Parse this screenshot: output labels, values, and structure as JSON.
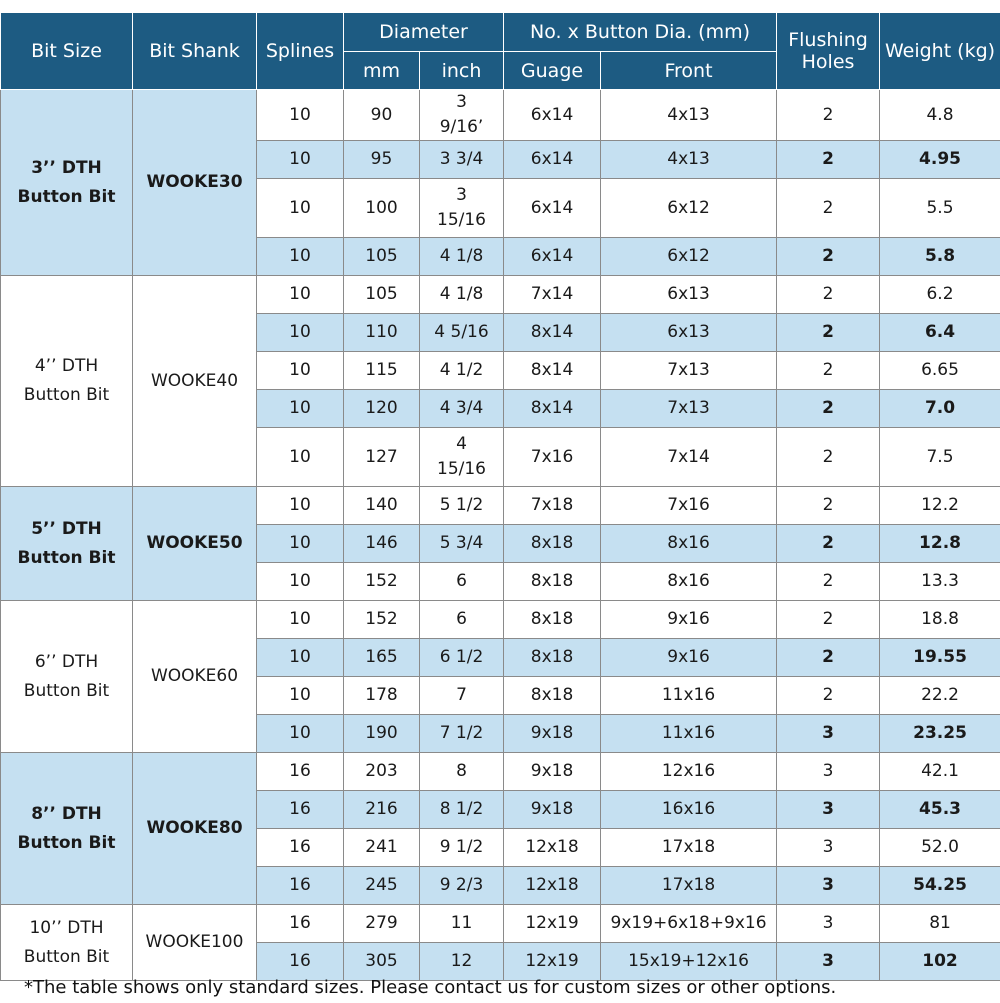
{
  "header": {
    "bit_size": "Bit Size",
    "bit_shank": "Bit Shank",
    "splines": "Splines",
    "diameter": "Diameter",
    "mm": "mm",
    "inch": "inch",
    "button": "No. x Button Dia. (mm)",
    "gauge": "Guage",
    "front": "Front",
    "flushing": "Flushing Holes",
    "weight": "Weight (kg)"
  },
  "groups": [
    {
      "size": "3’’ DTH Button Bit",
      "shank": "WOOKE30",
      "rows": [
        {
          "splines": "10",
          "mm": "90",
          "inch": "3 9/16’",
          "gauge": "6x14",
          "front": "4x13",
          "holes": "2",
          "weight": "4.8"
        },
        {
          "splines": "10",
          "mm": "95",
          "inch": "3 3/4",
          "gauge": "6x14",
          "front": "4x13",
          "holes": "2",
          "weight": "4.95"
        },
        {
          "splines": "10",
          "mm": "100",
          "inch": "3 15/16",
          "gauge": "6x14",
          "front": "6x12",
          "holes": "2",
          "weight": "5.5"
        },
        {
          "splines": "10",
          "mm": "105",
          "inch": "4 1/8",
          "gauge": "6x14",
          "front": "6x12",
          "holes": "2",
          "weight": "5.8"
        }
      ]
    },
    {
      "size": "4’’ DTH Button Bit",
      "shank": "WOOKE40",
      "rows": [
        {
          "splines": "10",
          "mm": "105",
          "inch": "4 1/8",
          "gauge": "7x14",
          "front": "6x13",
          "holes": "2",
          "weight": "6.2"
        },
        {
          "splines": "10",
          "mm": "110",
          "inch": "4 5/16",
          "gauge": "8x14",
          "front": "6x13",
          "holes": "2",
          "weight": "6.4"
        },
        {
          "splines": "10",
          "mm": "115",
          "inch": "4 1/2",
          "gauge": "8x14",
          "front": "7x13",
          "holes": "2",
          "weight": "6.65"
        },
        {
          "splines": "10",
          "mm": "120",
          "inch": "4 3/4",
          "gauge": "8x14",
          "front": "7x13",
          "holes": "2",
          "weight": "7.0"
        },
        {
          "splines": "10",
          "mm": "127",
          "inch": "4 15/16",
          "gauge": "7x16",
          "front": "7x14",
          "holes": "2",
          "weight": "7.5"
        }
      ]
    },
    {
      "size": "5’’ DTH Button Bit",
      "shank": "WOOKE50",
      "rows": [
        {
          "splines": "10",
          "mm": "140",
          "inch": "5 1/2",
          "gauge": "7x18",
          "front": "7x16",
          "holes": "2",
          "weight": "12.2"
        },
        {
          "splines": "10",
          "mm": "146",
          "inch": "5 3/4",
          "gauge": "8x18",
          "front": "8x16",
          "holes": "2",
          "weight": "12.8"
        },
        {
          "splines": "10",
          "mm": "152",
          "inch": "6",
          "gauge": "8x18",
          "front": "8x16",
          "holes": "2",
          "weight": "13.3"
        }
      ]
    },
    {
      "size": "6’’ DTH Button Bit",
      "shank": "WOOKE60",
      "rows": [
        {
          "splines": "10",
          "mm": "152",
          "inch": "6",
          "gauge": "8x18",
          "front": "9x16",
          "holes": "2",
          "weight": "18.8"
        },
        {
          "splines": "10",
          "mm": "165",
          "inch": "6 1/2",
          "gauge": "8x18",
          "front": "9x16",
          "holes": "2",
          "weight": "19.55"
        },
        {
          "splines": "10",
          "mm": "178",
          "inch": "7",
          "gauge": "8x18",
          "front": "11x16",
          "holes": "2",
          "weight": "22.2"
        },
        {
          "splines": "10",
          "mm": "190",
          "inch": "7 1/2",
          "gauge": "9x18",
          "front": "11x16",
          "holes": "3",
          "weight": "23.25"
        }
      ]
    },
    {
      "size": "8’’ DTH Button Bit",
      "shank": "WOOKE80",
      "rows": [
        {
          "splines": "16",
          "mm": "203",
          "inch": "8",
          "gauge": "9x18",
          "front": "12x16",
          "holes": "3",
          "weight": "42.1"
        },
        {
          "splines": "16",
          "mm": "216",
          "inch": "8 1/2",
          "gauge": "9x18",
          "front": "16x16",
          "holes": "3",
          "weight": "45.3"
        },
        {
          "splines": "16",
          "mm": "241",
          "inch": "9 1/2",
          "gauge": "12x18",
          "front": "17x18",
          "holes": "3",
          "weight": "52.0"
        },
        {
          "splines": "16",
          "mm": "245",
          "inch": "9 2/3",
          "gauge": "12x18",
          "front": "17x18",
          "holes": "3",
          "weight": "54.25"
        }
      ]
    },
    {
      "size": "10’’ DTH Button Bit",
      "shank": "WOOKE100",
      "rows": [
        {
          "splines": "16",
          "mm": "279",
          "inch": "11",
          "gauge": "12x19",
          "front": "9x19+6x18+9x16",
          "holes": "3",
          "weight": "81"
        },
        {
          "splines": "16",
          "mm": "305",
          "inch": "12",
          "gauge": "12x19",
          "front": "15x19+12x16",
          "holes": "3",
          "weight": "102"
        }
      ]
    }
  ],
  "footnote": "*The table shows only standard sizes. Please contact us for custom sizes or other options.",
  "colors": {
    "header_bg": "#1d5b82",
    "band_bg": "#c5e0f1"
  }
}
